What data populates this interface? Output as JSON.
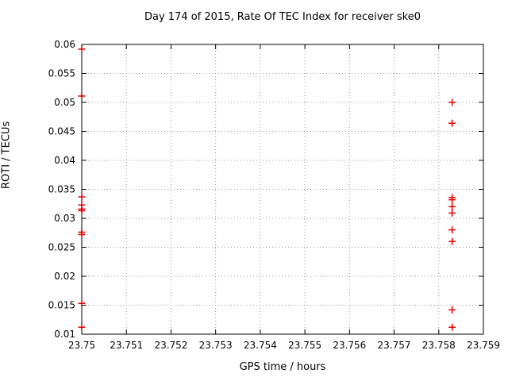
{
  "chart_data": {
    "type": "scatter",
    "title": "Day 174 of 2015, Rate Of TEC Index for receiver ske0",
    "xlabel": "GPS time / hours",
    "ylabel": "ROTI / TECUs",
    "xlim": [
      23.75,
      23.759
    ],
    "ylim": [
      0.01,
      0.06
    ],
    "grid": true,
    "legend": "none",
    "xticks": {
      "values": [
        23.75,
        23.751,
        23.752,
        23.753,
        23.754,
        23.755,
        23.756,
        23.757,
        23.758,
        23.759
      ],
      "labels": [
        "23.75",
        "23.751",
        "23.752",
        "23.753",
        "23.754",
        "23.755",
        "23.756",
        "23.757",
        "23.758",
        "23.759"
      ]
    },
    "yticks": {
      "values": [
        0.01,
        0.015,
        0.02,
        0.025,
        0.03,
        0.035,
        0.04,
        0.045,
        0.05,
        0.055,
        0.06
      ],
      "labels": [
        "0.01",
        "0.015",
        "0.02",
        "0.025",
        "0.03",
        "0.035",
        "0.04",
        "0.045",
        "0.05",
        "0.055",
        "0.06"
      ]
    },
    "marker": {
      "shape": "plus",
      "color": "#e10000",
      "size": 9,
      "stroke_width": 1.5
    },
    "series": [
      {
        "name": "ROTI",
        "points": [
          [
            23.75,
            0.0592
          ],
          [
            23.75,
            0.0511
          ],
          [
            23.75,
            0.0337
          ],
          [
            23.75,
            0.0323
          ],
          [
            23.75,
            0.0316
          ],
          [
            23.75,
            0.0313
          ],
          [
            23.75,
            0.0276
          ],
          [
            23.75,
            0.0272
          ],
          [
            23.75,
            0.0153
          ],
          [
            23.75,
            0.0112
          ],
          [
            23.7583,
            0.05
          ],
          [
            23.7583,
            0.0464
          ],
          [
            23.7583,
            0.0336
          ],
          [
            23.7583,
            0.0332
          ],
          [
            23.7583,
            0.032
          ],
          [
            23.7583,
            0.0309
          ],
          [
            23.7583,
            0.028
          ],
          [
            23.7583,
            0.026
          ],
          [
            23.7583,
            0.0142
          ],
          [
            23.7583,
            0.0112
          ]
        ]
      }
    ],
    "colors": {
      "grid": "#9a9a9a",
      "border": "#000000",
      "background": "#ffffff",
      "point": "#e10000"
    }
  }
}
